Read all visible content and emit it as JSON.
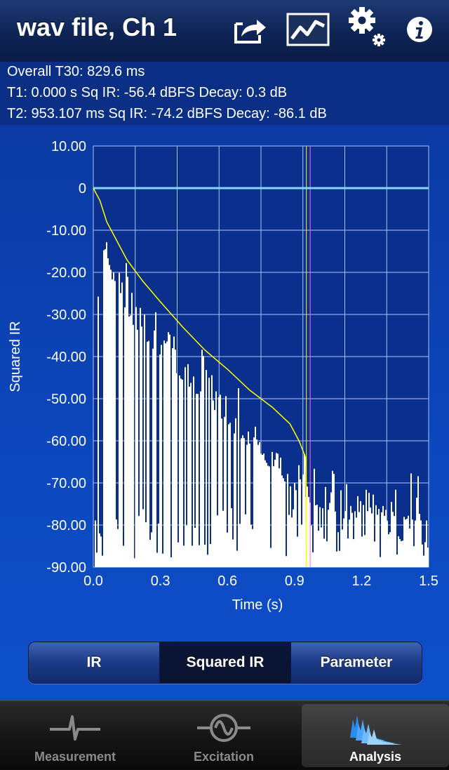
{
  "header": {
    "title": "wav file, Ch 1"
  },
  "info": {
    "line1": "Overall T30:  829.6 ms",
    "line2": "T1: 0.000 s Sq IR: -56.4 dBFS Decay: 0.3 dB",
    "line3": "T2: 953.107 ms Sq IR: -74.2 dBFS Decay: -86.1 dB"
  },
  "chart_data": {
    "type": "line",
    "ylabel": "Squared IR",
    "xlabel": "Time (s)",
    "xlim": [
      0,
      1.5
    ],
    "ylim": [
      -90,
      10
    ],
    "xticks": [
      "0.0",
      "0.3",
      "0.6",
      "0.9",
      "1.2",
      "1.5"
    ],
    "yticks": [
      "10.00",
      "0",
      "-10.00",
      "-20.00",
      "-30.00",
      "-40.00",
      "-50.00",
      "-60.00",
      "-70.00",
      "-80.00",
      "-90.00"
    ],
    "grid": true,
    "series": [
      {
        "color": "#ffff00",
        "x": [
          0.0,
          0.03,
          0.06,
          0.1,
          0.15,
          0.22,
          0.3,
          0.4,
          0.5,
          0.6,
          0.7,
          0.8,
          0.88,
          0.92,
          0.95,
          0.953
        ],
        "y": [
          0,
          -3,
          -8,
          -12,
          -17,
          -22,
          -27,
          -33,
          -38.5,
          -43,
          -48,
          -52,
          -56,
          -60,
          -64,
          -90
        ]
      },
      {
        "color": "#ffffff",
        "envelope_x": [
          0.0,
          0.03,
          0.05,
          0.1,
          0.15,
          0.2,
          0.3,
          0.4,
          0.5,
          0.6,
          0.7,
          0.8,
          0.9,
          1.0,
          1.1,
          1.2,
          1.3,
          1.4,
          1.5
        ],
        "envelope_y": [
          -50,
          -12,
          -14,
          -22,
          -27,
          -32,
          -37,
          -43,
          -48,
          -54,
          -59,
          -64,
          -69,
          -73,
          -74,
          -75,
          -75,
          -76,
          -76
        ]
      }
    ],
    "markers": [
      {
        "color": "#ffff00",
        "x": 0.953
      },
      {
        "color": "#ff66ff",
        "x": 0.97
      },
      {
        "color": "#7fd6ff",
        "y": 0
      }
    ]
  },
  "segments": [
    "IR",
    "Squared IR",
    "Parameter"
  ],
  "selected_segment": "Squared IR",
  "tabs": [
    {
      "label": "Measurement",
      "icon": "ecg-icon"
    },
    {
      "label": "Excitation",
      "icon": "sine-wave-icon"
    },
    {
      "label": "Analysis",
      "icon": "waterfall-icon"
    }
  ],
  "selected_tab": "Analysis"
}
